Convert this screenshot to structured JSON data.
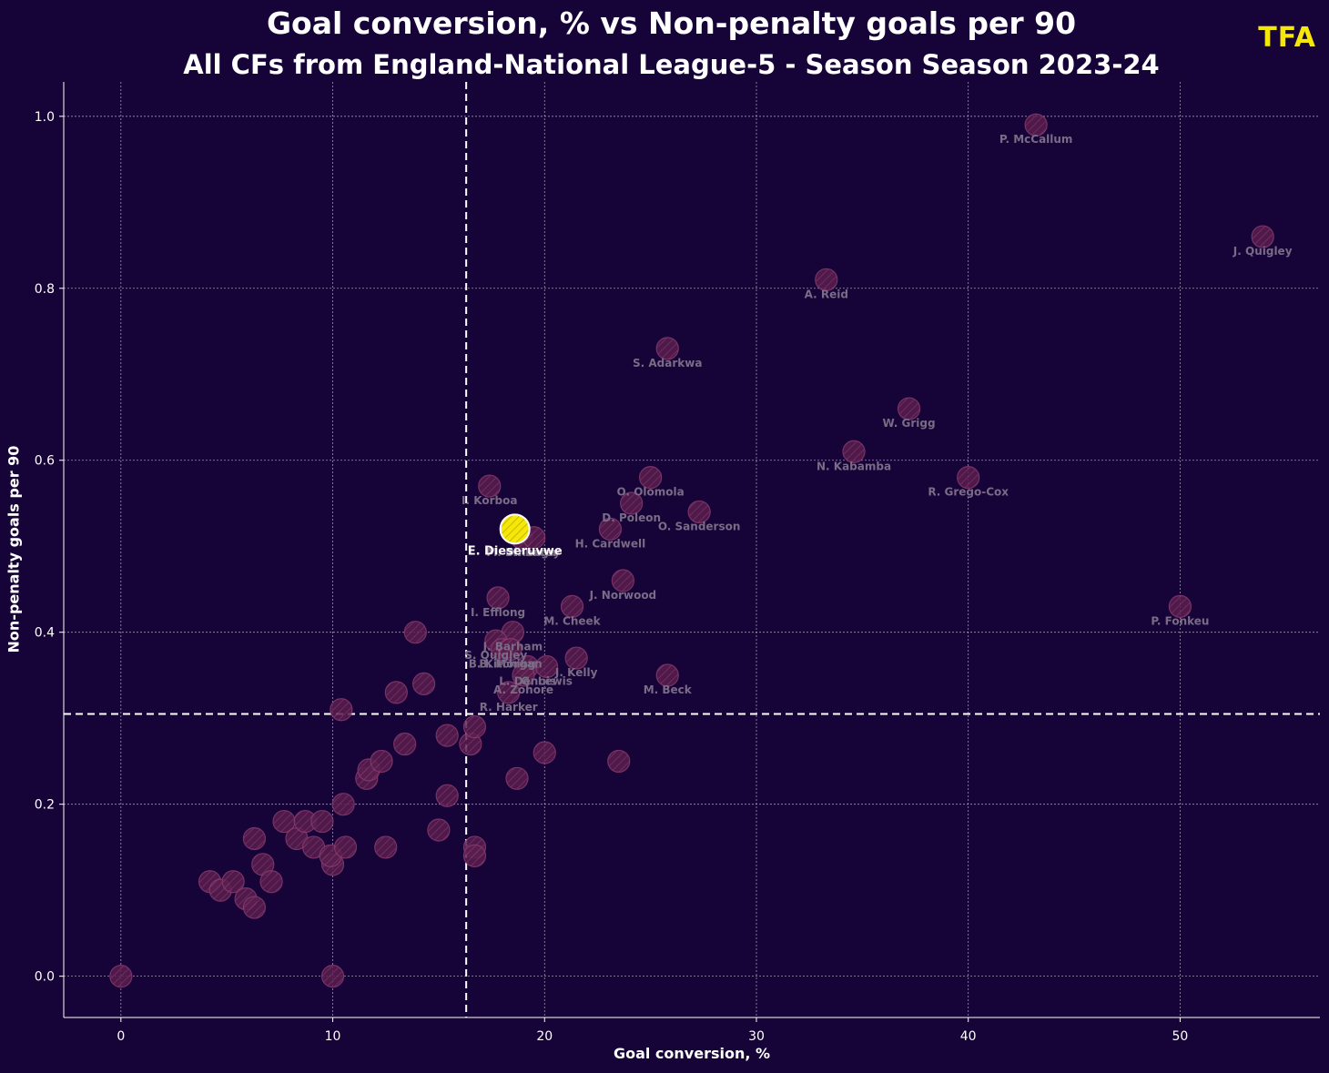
{
  "header": {
    "title": "Goal conversion, % vs Non-penalty goals per 90",
    "subtitle": "All CFs from England-National League-5 - Season Season 2023-24",
    "logo": "TFA"
  },
  "colors": {
    "background": "#160337",
    "point_fill": "#5a1f4e",
    "point_stroke": "#8a3b70",
    "highlight": "#f5e70a",
    "label": "#7a6b86",
    "grid": "#d0c8d8",
    "text": "#ffffff"
  },
  "chart_data": {
    "type": "scatter",
    "title": "Goal conversion, % vs Non-penalty goals per 90",
    "subtitle": "All CFs from England-National League-5 - Season Season 2023-24",
    "xlabel": "Goal conversion, %",
    "ylabel": "Non-penalty goals per 90",
    "xlim": [
      -2.7,
      56.6
    ],
    "ylim": [
      -0.048,
      1.04
    ],
    "xticks": [
      0,
      10,
      20,
      30,
      40,
      50
    ],
    "yticks": [
      0.0,
      0.2,
      0.4,
      0.6,
      0.8,
      1.0
    ],
    "xtick_labels": [
      "0",
      "10",
      "20",
      "30",
      "40",
      "50"
    ],
    "ytick_labels": [
      "0.0",
      "0.2",
      "0.4",
      "0.6",
      "0.8",
      "1.0"
    ],
    "grid": true,
    "reference_lines": {
      "x_mean": 16.3,
      "y_mean": 0.305
    },
    "highlight": {
      "name": "E. Dieseruvwe",
      "x": 18.6,
      "y": 0.52
    },
    "labeled_points": [
      {
        "name": "P. McCallum",
        "x": 43.2,
        "y": 0.99
      },
      {
        "name": "J. Quigley",
        "x": 53.9,
        "y": 0.86
      },
      {
        "name": "A. Reid",
        "x": 33.3,
        "y": 0.81
      },
      {
        "name": "S. Adarkwa",
        "x": 25.8,
        "y": 0.73
      },
      {
        "name": "W. Grigg",
        "x": 37.2,
        "y": 0.66
      },
      {
        "name": "N. Kabamba",
        "x": 34.6,
        "y": 0.61
      },
      {
        "name": "R. Grego-Cox",
        "x": 40.0,
        "y": 0.58
      },
      {
        "name": "O. Olomola",
        "x": 25.0,
        "y": 0.58
      },
      {
        "name": "I. Korboa",
        "x": 17.4,
        "y": 0.57
      },
      {
        "name": "D. Poleon",
        "x": 24.1,
        "y": 0.55
      },
      {
        "name": "O. Sanderson",
        "x": 27.3,
        "y": 0.54
      },
      {
        "name": "H. Cardwell",
        "x": 23.1,
        "y": 0.52
      },
      {
        "name": "M. Dinanga",
        "x": 18.9,
        "y": 0.51
      },
      {
        "name": "H. Lacey",
        "x": 19.5,
        "y": 0.51
      },
      {
        "name": "J. Norwood",
        "x": 23.7,
        "y": 0.46
      },
      {
        "name": "I. Efflong",
        "x": 17.8,
        "y": 0.44
      },
      {
        "name": "M. Cheek",
        "x": 21.3,
        "y": 0.43
      },
      {
        "name": "P. Fonkeu",
        "x": 50.0,
        "y": 0.43
      },
      {
        "name": "J. Barham",
        "x": 18.5,
        "y": 0.4
      },
      {
        "name": "S. Quigley",
        "x": 17.7,
        "y": 0.39
      },
      {
        "name": "B. Kitching",
        "x": 18.0,
        "y": 0.38
      },
      {
        "name": "B. Morgan",
        "x": 18.4,
        "y": 0.38
      },
      {
        "name": "J. Kelly",
        "x": 21.5,
        "y": 0.37
      },
      {
        "name": "L. Dennis",
        "x": 19.2,
        "y": 0.36
      },
      {
        "name": "G. Lewis",
        "x": 20.1,
        "y": 0.36
      },
      {
        "name": "A. Zohore",
        "x": 19.0,
        "y": 0.35
      },
      {
        "name": "M. Beck",
        "x": 25.8,
        "y": 0.35
      },
      {
        "name": "R. Harker",
        "x": 18.3,
        "y": 0.33
      }
    ],
    "unlabeled_points": [
      {
        "x": 0.0,
        "y": 0.0
      },
      {
        "x": 10.0,
        "y": 0.0
      },
      {
        "x": 4.2,
        "y": 0.11
      },
      {
        "x": 4.7,
        "y": 0.1
      },
      {
        "x": 5.3,
        "y": 0.11
      },
      {
        "x": 5.9,
        "y": 0.09
      },
      {
        "x": 6.3,
        "y": 0.08
      },
      {
        "x": 6.7,
        "y": 0.13
      },
      {
        "x": 7.1,
        "y": 0.11
      },
      {
        "x": 6.3,
        "y": 0.16
      },
      {
        "x": 7.7,
        "y": 0.18
      },
      {
        "x": 8.3,
        "y": 0.16
      },
      {
        "x": 8.7,
        "y": 0.18
      },
      {
        "x": 9.1,
        "y": 0.15
      },
      {
        "x": 9.5,
        "y": 0.18
      },
      {
        "x": 10.0,
        "y": 0.13
      },
      {
        "x": 9.9,
        "y": 0.14
      },
      {
        "x": 10.5,
        "y": 0.2
      },
      {
        "x": 10.6,
        "y": 0.15
      },
      {
        "x": 11.6,
        "y": 0.23
      },
      {
        "x": 11.7,
        "y": 0.24
      },
      {
        "x": 12.3,
        "y": 0.25
      },
      {
        "x": 12.5,
        "y": 0.15
      },
      {
        "x": 10.4,
        "y": 0.31
      },
      {
        "x": 13.0,
        "y": 0.33
      },
      {
        "x": 13.4,
        "y": 0.27
      },
      {
        "x": 13.9,
        "y": 0.4
      },
      {
        "x": 14.3,
        "y": 0.34
      },
      {
        "x": 15.0,
        "y": 0.17
      },
      {
        "x": 15.4,
        "y": 0.21
      },
      {
        "x": 15.4,
        "y": 0.28
      },
      {
        "x": 16.5,
        "y": 0.27
      },
      {
        "x": 16.7,
        "y": 0.29
      },
      {
        "x": 16.7,
        "y": 0.15
      },
      {
        "x": 16.7,
        "y": 0.14
      },
      {
        "x": 18.7,
        "y": 0.23
      },
      {
        "x": 20.0,
        "y": 0.26
      },
      {
        "x": 23.5,
        "y": 0.25
      }
    ]
  }
}
